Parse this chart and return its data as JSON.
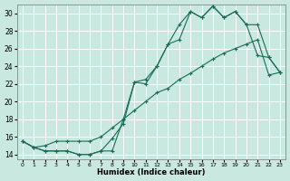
{
  "xlabel": "Humidex (Indice chaleur)",
  "background_color": "#c8e8e0",
  "grid_color": "#ffffff",
  "line_color": "#1a6b5a",
  "xlim": [
    -0.5,
    23.5
  ],
  "ylim": [
    13.5,
    31.0
  ],
  "yticks": [
    14,
    16,
    18,
    20,
    22,
    24,
    26,
    28,
    30
  ],
  "xtick_labels": [
    "0",
    "1",
    "2",
    "3",
    "4",
    "5",
    "6",
    "7",
    "8",
    "9",
    "10",
    "11",
    "12",
    "13",
    "14",
    "15",
    "16",
    "17",
    "18",
    "19",
    "20",
    "21",
    "22",
    "23"
  ],
  "line1_x": [
    0,
    1,
    2,
    3,
    4,
    5,
    6,
    7,
    8,
    9,
    10,
    11,
    12,
    13,
    14,
    15,
    16,
    17,
    18,
    19,
    20,
    21,
    22,
    23
  ],
  "line1_y": [
    15.5,
    14.8,
    14.4,
    14.4,
    14.4,
    14.0,
    14.0,
    14.4,
    14.4,
    18.0,
    22.2,
    22.0,
    24.0,
    26.5,
    27.0,
    30.2,
    29.5,
    30.8,
    29.5,
    30.2,
    28.7,
    25.2,
    25.0,
    23.3
  ],
  "line2_x": [
    0,
    1,
    2,
    3,
    4,
    5,
    6,
    7,
    8,
    9,
    10,
    11,
    12,
    13,
    14,
    15,
    16,
    17,
    18,
    19,
    20,
    21,
    22,
    23
  ],
  "line2_y": [
    15.5,
    14.8,
    14.4,
    14.4,
    14.4,
    14.0,
    14.0,
    14.4,
    15.8,
    17.5,
    22.2,
    22.5,
    24.0,
    26.5,
    28.7,
    30.2,
    29.5,
    30.8,
    29.5,
    30.2,
    28.7,
    28.7,
    25.0,
    23.3
  ],
  "line3_x": [
    0,
    1,
    2,
    3,
    4,
    5,
    6,
    7,
    8,
    9,
    10,
    11,
    12,
    13,
    14,
    15,
    16,
    17,
    18,
    19,
    20,
    21,
    22,
    23
  ],
  "line3_y": [
    15.5,
    14.8,
    15.0,
    15.5,
    15.5,
    15.5,
    15.5,
    16.0,
    17.0,
    18.0,
    19.0,
    20.0,
    21.0,
    21.5,
    22.5,
    23.2,
    24.0,
    24.8,
    25.5,
    26.0,
    26.5,
    27.0,
    23.0,
    23.3
  ]
}
